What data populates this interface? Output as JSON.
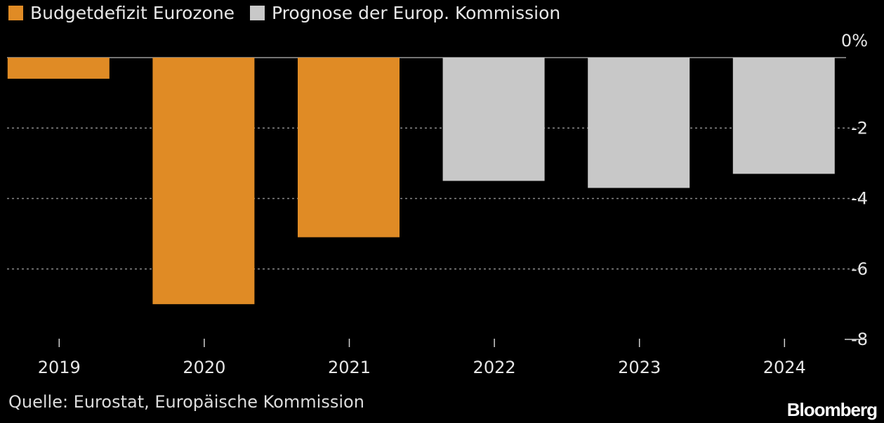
{
  "legend": [
    {
      "label": "Budgetdefizit Eurozone",
      "color": "#e08b25"
    },
    {
      "label": "Prognose der Europ. Kommission",
      "color": "#c8c8c8"
    }
  ],
  "source": "Quelle: Eurostat, Europäische Kommission",
  "brand": "Bloomberg",
  "chart_data": {
    "type": "bar",
    "categories": [
      "2019",
      "2020",
      "2021",
      "2022",
      "2023",
      "2024"
    ],
    "series": [
      {
        "name": "Budgetdefizit Eurozone",
        "color": "#e08b25",
        "values": [
          -0.6,
          -7.0,
          -5.1,
          null,
          null,
          null
        ]
      },
      {
        "name": "Prognose der Europ. Kommission",
        "color": "#c8c8c8",
        "values": [
          null,
          null,
          null,
          -3.5,
          -3.7,
          -3.3
        ]
      }
    ],
    "ylim": [
      -8,
      0
    ],
    "yticks": [
      0,
      -2,
      -4,
      -6,
      -8
    ],
    "ytick_labels": [
      "0%",
      "-2",
      "-4",
      "-6",
      "-8"
    ],
    "grid": true,
    "legend_position": "top-left"
  }
}
